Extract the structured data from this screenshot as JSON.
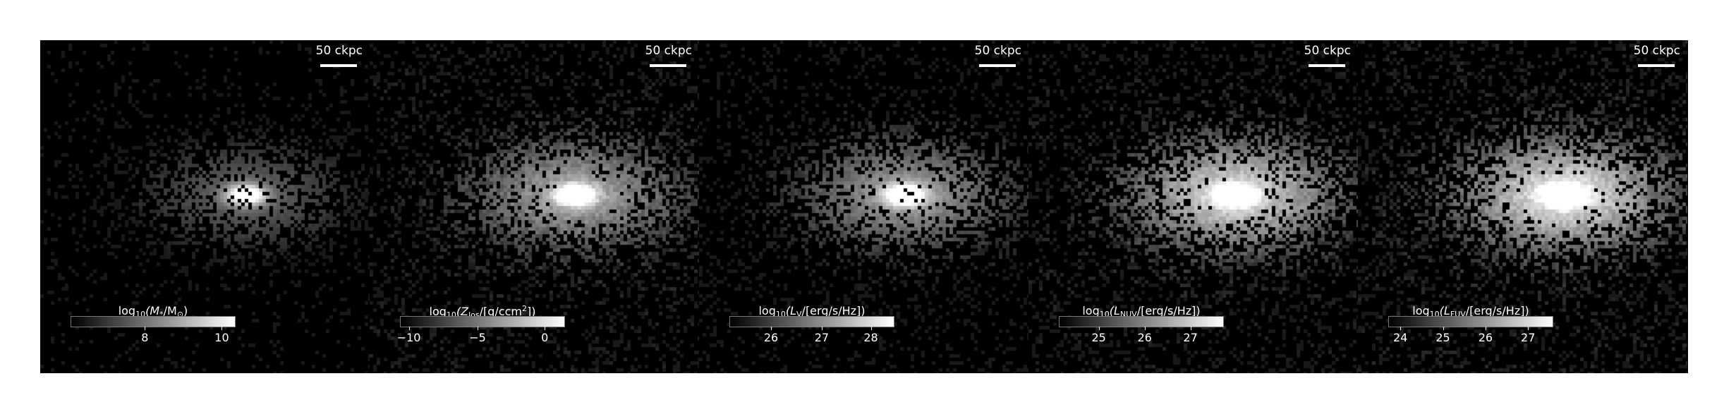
{
  "panels": [
    {
      "scale_label": "50 ckpc",
      "colorbar": {
        "pre": "log",
        "sub": "10",
        "rest": "(M",
        "sub2": "*",
        "tail": "/M",
        "sub3": "⊙",
        "end": ")"
      },
      "ticks": [
        "8",
        "10"
      ],
      "tick_positions": [
        0.45,
        0.92
      ],
      "texture": {
        "brightness": 0.35,
        "background": 0.15,
        "core": 1.0,
        "seed": 11
      }
    },
    {
      "scale_label": "50 ckpc",
      "colorbar": {
        "pre": "log",
        "sub": "10",
        "rest": "(Z",
        "sub2": "los",
        "tail": "/[g/ccm",
        "sup": "2",
        "end": "])"
      },
      "ticks": [
        "−10",
        "−5",
        "0"
      ],
      "tick_positions": [
        0.05,
        0.47,
        0.88
      ],
      "texture": {
        "brightness": 0.55,
        "background": 0.45,
        "core": 0.95,
        "seed": 23
      }
    },
    {
      "scale_label": "50 ckpc",
      "colorbar": {
        "pre": "log",
        "sub": "10",
        "rest": "(L",
        "sub2": "V",
        "tail": "/[erg/s/Hz]",
        "end": ")"
      },
      "ticks": [
        "26",
        "27",
        "28"
      ],
      "tick_positions": [
        0.25,
        0.56,
        0.86
      ],
      "texture": {
        "brightness": 0.55,
        "background": 0.3,
        "core": 0.95,
        "seed": 37
      }
    },
    {
      "scale_label": "50 ckpc",
      "colorbar": {
        "pre": "log",
        "sub": "10",
        "rest": "(L",
        "sub2": "NUV",
        "tail": "/[erg/s/Hz]",
        "end": ")"
      },
      "ticks": [
        "25",
        "26",
        "27"
      ],
      "tick_positions": [
        0.24,
        0.52,
        0.8
      ],
      "texture": {
        "brightness": 0.75,
        "background": 0.45,
        "core": 0.9,
        "seed": 41
      }
    },
    {
      "scale_label": "50 ckpc",
      "colorbar": {
        "pre": "log",
        "sub": "10",
        "rest": "(L",
        "sub2": "FUV",
        "tail": "/[erg/s/Hz]",
        "end": ")"
      },
      "ticks": [
        "24",
        "25",
        "26",
        "27"
      ],
      "tick_positions": [
        0.07,
        0.33,
        0.59,
        0.85
      ],
      "texture": {
        "brightness": 0.8,
        "background": 0.5,
        "core": 0.9,
        "seed": 53
      }
    }
  ]
}
